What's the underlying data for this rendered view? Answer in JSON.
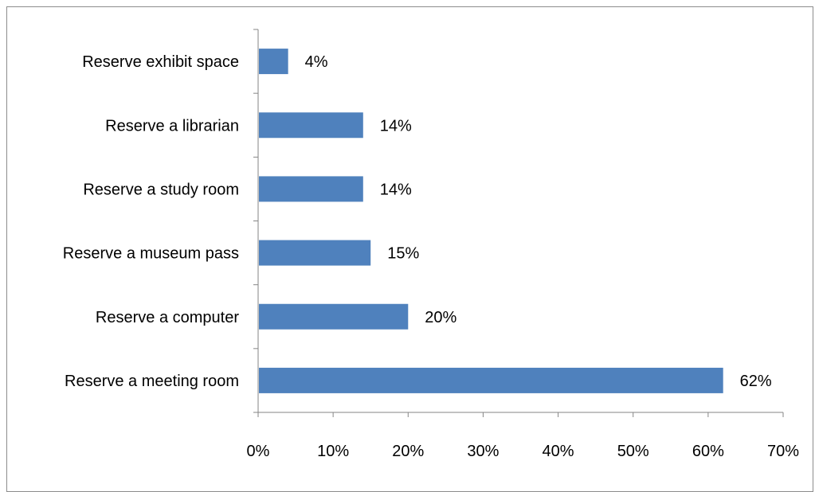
{
  "chart_data": {
    "type": "bar",
    "orientation": "horizontal",
    "categories": [
      "Reserve exhibit space",
      "Reserve a librarian",
      "Reserve a study  room",
      "Reserve a museum  pass",
      "Reserve a computer",
      "Reserve a meeting  room"
    ],
    "values": [
      4,
      14,
      14,
      15,
      20,
      62
    ],
    "value_labels": [
      "4%",
      "14%",
      "14%",
      "15%",
      "20%",
      "62%"
    ],
    "xlim": [
      0,
      70
    ],
    "x_ticks": [
      "0%",
      "10%",
      "20%",
      "30%",
      "40%",
      "50%",
      "60%",
      "70%"
    ],
    "bar_color": "#4f81bd",
    "grid": false,
    "legend": "none"
  }
}
